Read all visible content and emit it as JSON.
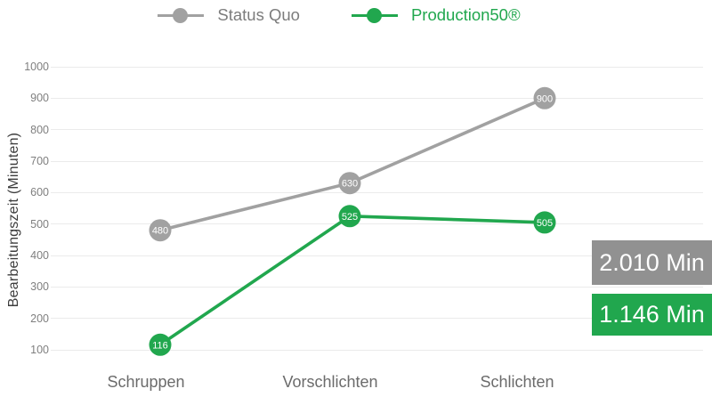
{
  "chart_data": {
    "type": "line",
    "title": "",
    "categories": [
      "Schruppen",
      "Vorschlichten",
      "Schlichten"
    ],
    "series": [
      {
        "name": "Status Quo",
        "values": [
          480,
          630,
          900
        ],
        "total": 2010,
        "total_label": "2.010 Min",
        "color": "#a1a1a1",
        "box_color": "#919191",
        "text_color": "#7c7c7c"
      },
      {
        "name": "Production50®",
        "values": [
          116,
          525,
          505
        ],
        "total": 1146,
        "total_label": "1.146 Min",
        "color": "#21a74e",
        "box_color": "#21a74e",
        "text_color": "#21a74e"
      }
    ],
    "xlabel": "",
    "ylabel": "Bearbeitungszeit (Minuten)",
    "ylim": [
      100,
      1000
    ],
    "yticks": [
      100,
      200,
      300,
      400,
      500,
      600,
      700,
      800,
      900,
      1000
    ],
    "grid": true,
    "legend_position": "top-center",
    "marker_style": "filled-circle-with-value-label"
  },
  "colors": {
    "background": "#ffffff",
    "gridline": "#ebebeb",
    "tick_text": "#7f7f7f",
    "category_text": "#6b6b6b",
    "axis_title_text": "#3d3d3d"
  }
}
